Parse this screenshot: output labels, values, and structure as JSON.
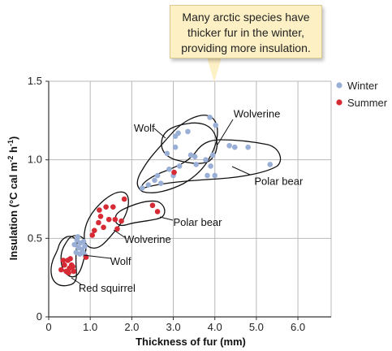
{
  "chart_data": {
    "type": "scatter",
    "xlabel": "Thickness of fur (mm)",
    "ylabel_main": "Insulation (°C cal m",
    "ylabel_sup1": "-2",
    "ylabel_mid": " h",
    "ylabel_sup2": "-1",
    "ylabel_end": ")",
    "xlim": [
      0,
      6.8
    ],
    "ylim": [
      0,
      1.5
    ],
    "x_ticks": [
      {
        "value": 0,
        "label": "0"
      },
      {
        "value": 1,
        "label": "1.0"
      },
      {
        "value": 2,
        "label": "2.0"
      },
      {
        "value": 3,
        "label": "3.0"
      },
      {
        "value": 4,
        "label": "4.0"
      },
      {
        "value": 5,
        "label": "5.0"
      },
      {
        "value": 6,
        "label": "6.0"
      }
    ],
    "y_ticks": [
      {
        "value": 0,
        "label": "0"
      },
      {
        "value": 0.5,
        "label": "0.5"
      },
      {
        "value": 1.0,
        "label": "1.0"
      },
      {
        "value": 1.5,
        "label": "1.5"
      }
    ],
    "grid": true,
    "legend_position": "top-right",
    "legend": [
      {
        "label": "Winter",
        "color": "#9aafd6"
      },
      {
        "label": "Summer",
        "color": "#d62a35"
      }
    ],
    "series": [
      {
        "name": "Winter",
        "color": "#9aafd6",
        "points": [
          [
            0.62,
            0.46
          ],
          [
            0.68,
            0.49
          ],
          [
            0.72,
            0.44
          ],
          [
            0.76,
            0.47
          ],
          [
            0.8,
            0.43
          ],
          [
            0.84,
            0.48
          ],
          [
            0.66,
            0.41
          ],
          [
            0.75,
            0.4
          ],
          [
            0.83,
            0.41
          ],
          [
            0.88,
            0.39
          ],
          [
            0.7,
            0.51
          ],
          [
            0.87,
            0.45
          ],
          [
            2.25,
            0.82
          ],
          [
            2.4,
            0.84
          ],
          [
            2.55,
            0.87
          ],
          [
            2.7,
            0.85
          ],
          [
            2.62,
            0.9
          ],
          [
            2.9,
            0.94
          ],
          [
            3.0,
            0.9
          ],
          [
            2.85,
            1.04
          ],
          [
            3.05,
            1.15
          ],
          [
            3.12,
            1.17
          ],
          [
            3.35,
            1.18
          ],
          [
            3.05,
            1.08
          ],
          [
            3.42,
            1.03
          ],
          [
            3.52,
            1.02
          ],
          [
            3.55,
            0.97
          ],
          [
            3.78,
            1.0
          ],
          [
            3.88,
            1.27
          ],
          [
            4.02,
            1.22
          ],
          [
            3.95,
            1.03
          ],
          [
            3.9,
            0.96
          ],
          [
            4.0,
            0.9
          ],
          [
            3.82,
            0.9
          ],
          [
            4.35,
            1.09
          ],
          [
            4.48,
            1.08
          ],
          [
            4.8,
            1.08
          ],
          [
            5.33,
            0.97
          ],
          [
            3.15,
            0.96
          ]
        ]
      },
      {
        "name": "Summer",
        "color": "#d62a35",
        "points": [
          [
            0.3,
            0.3
          ],
          [
            0.38,
            0.33
          ],
          [
            0.42,
            0.29
          ],
          [
            0.46,
            0.36
          ],
          [
            0.5,
            0.31
          ],
          [
            0.55,
            0.33
          ],
          [
            0.6,
            0.29
          ],
          [
            0.35,
            0.36
          ],
          [
            0.52,
            0.37
          ],
          [
            0.58,
            0.32
          ],
          [
            0.48,
            0.28
          ],
          [
            0.9,
            0.38
          ],
          [
            1.1,
            0.55
          ],
          [
            1.2,
            0.6
          ],
          [
            1.25,
            0.64
          ],
          [
            1.32,
            0.57
          ],
          [
            1.38,
            0.7
          ],
          [
            1.45,
            0.62
          ],
          [
            1.55,
            0.7
          ],
          [
            1.6,
            0.62
          ],
          [
            1.75,
            0.61
          ],
          [
            1.82,
            0.75
          ],
          [
            1.05,
            0.52
          ],
          [
            1.22,
            0.68
          ],
          [
            1.65,
            0.56
          ],
          [
            2.5,
            0.71
          ],
          [
            2.62,
            0.67
          ],
          [
            3.02,
            0.92
          ]
        ]
      }
    ],
    "annotations": [
      {
        "text": "Wolf",
        "x": 2.05,
        "y": 1.18
      },
      {
        "text": "Wolverine",
        "x": 4.45,
        "y": 1.27
      },
      {
        "text": "Polar bear",
        "x": 4.95,
        "y": 0.84
      },
      {
        "text": "Polar bear",
        "x": 3.0,
        "y": 0.58
      },
      {
        "text": "Wolverine",
        "x": 1.82,
        "y": 0.47
      },
      {
        "text": "Wolf",
        "x": 1.48,
        "y": 0.33
      },
      {
        "text": "Red squirrel",
        "x": 0.72,
        "y": 0.16
      }
    ]
  },
  "callout": {
    "line1": "Many arctic species have",
    "line2": "thicker fur in the winter,",
    "line3": "providing more insulation."
  }
}
